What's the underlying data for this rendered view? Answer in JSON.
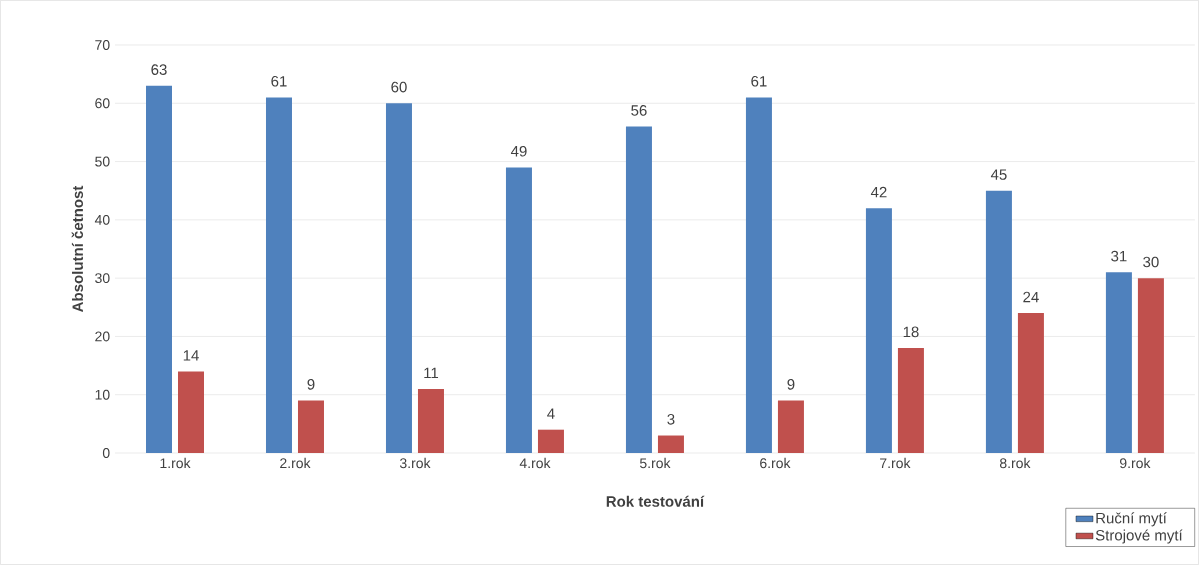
{
  "chart_data": {
    "type": "bar",
    "xlabel": "Rok testování",
    "ylabel": "Absolutní četnost",
    "categories": [
      "1.rok",
      "2.rok",
      "3.rok",
      "4.rok",
      "5.rok",
      "6.rok",
      "7.rok",
      "8.rok",
      "9.rok"
    ],
    "series": [
      {
        "name": "Ruční mytí",
        "color": "#4f81bd",
        "values": [
          63,
          61,
          60,
          49,
          56,
          61,
          42,
          45,
          31
        ]
      },
      {
        "name": "Strojové mytí",
        "color": "#c0504d",
        "values": [
          14,
          9,
          11,
          4,
          3,
          9,
          18,
          24,
          30
        ]
      }
    ],
    "ylim": [
      0,
      70
    ],
    "yticks": [
      0,
      10,
      20,
      30,
      40,
      50,
      60,
      70
    ],
    "grid": "y",
    "legend": "bottom right",
    "data_labels": true
  }
}
